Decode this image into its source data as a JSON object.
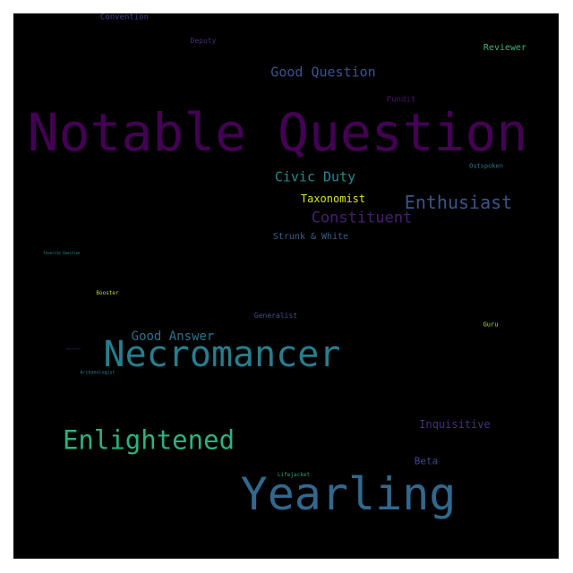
{
  "words": [
    {
      "text": "Notable Question",
      "color": "#440154"
    },
    {
      "text": "Yearling",
      "color": "#31688e"
    },
    {
      "text": "Necromancer",
      "color": "#287d8e"
    },
    {
      "text": "Enlightened",
      "color": "#2db27d"
    },
    {
      "text": "Enthusiast",
      "color": "#39568c"
    },
    {
      "text": "Constituent",
      "color": "#481f70"
    },
    {
      "text": "Good Question",
      "color": "#3b528b"
    },
    {
      "text": "Civic Duty",
      "color": "#23898e"
    },
    {
      "text": "Good Answer",
      "color": "#2c728e"
    },
    {
      "text": "Taxonomist",
      "color": "#d8e219"
    },
    {
      "text": "Strunk & White",
      "color": "#355f8d"
    },
    {
      "text": "Inquisitive",
      "color": "#46307e"
    },
    {
      "text": "Reviewer",
      "color": "#35b779"
    },
    {
      "text": "Beta",
      "color": "#3e4a89"
    },
    {
      "text": "Pundit",
      "color": "#471365"
    },
    {
      "text": "Deputy",
      "color": "#472d7b"
    },
    {
      "text": "Convention",
      "color": "#414487"
    },
    {
      "text": "Outspoken",
      "color": "#2a788e"
    },
    {
      "text": "Generalist",
      "color": "#3b528b"
    },
    {
      "text": "Guru",
      "color": "#b5de2b"
    },
    {
      "text": "Booster",
      "color": "#b5de2b"
    },
    {
      "text": "Lifejacket",
      "color": "#20a486"
    },
    {
      "text": "Archaeologist",
      "color": "#25858e"
    },
    {
      "text": "Favorite Question",
      "color": "#1f9e89"
    },
    {
      "text": "Announcer",
      "color": "#482878"
    }
  ]
}
